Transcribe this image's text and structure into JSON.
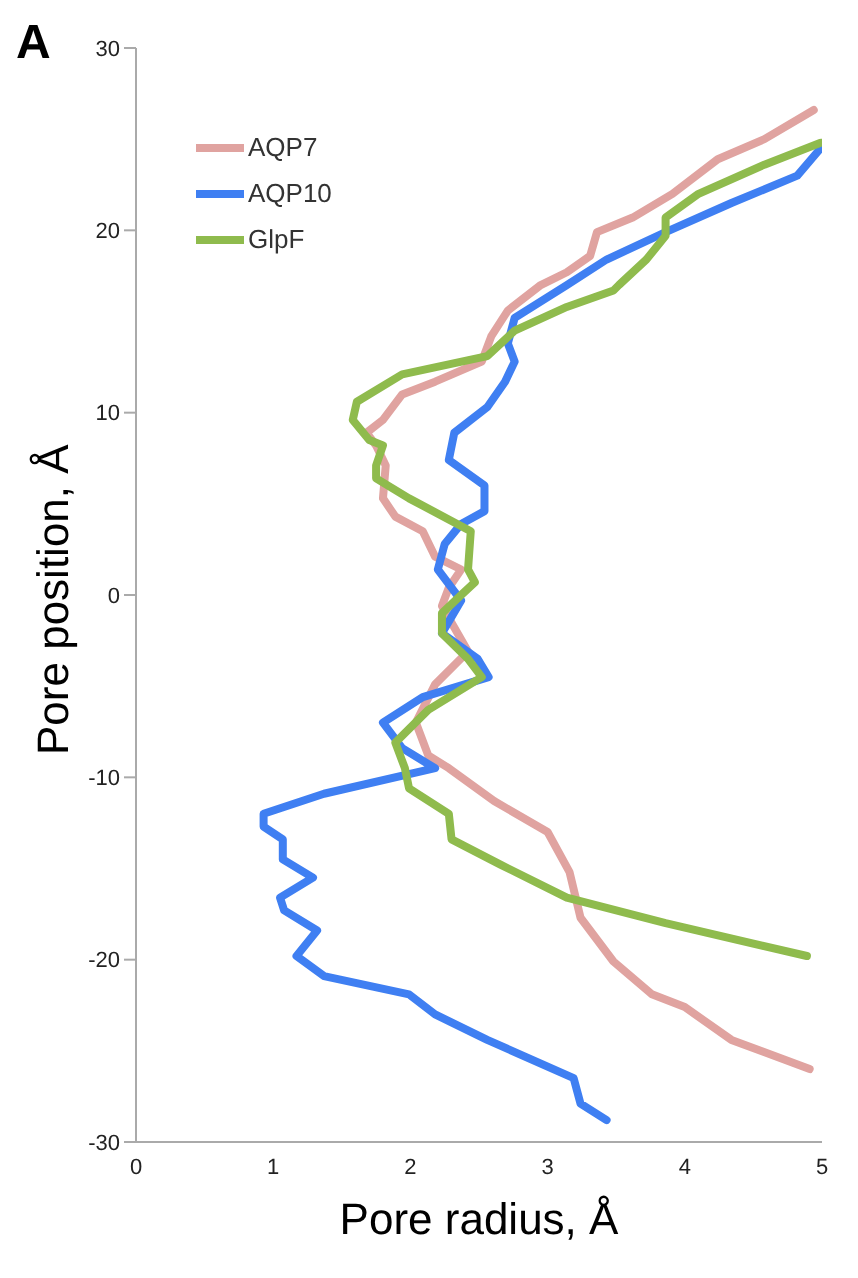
{
  "chart_data": {
    "type": "line",
    "title": "A",
    "xlabel": "Pore radius, Å",
    "ylabel": "Pore position, Å",
    "xlim": [
      0,
      5
    ],
    "xticks": [
      0,
      1,
      2,
      3,
      4,
      5
    ],
    "ylim": [
      -30,
      30
    ],
    "yticks": [
      -30,
      -20,
      -10,
      0,
      10,
      20,
      30
    ],
    "grid": false,
    "legend": "top left",
    "marker": "none",
    "line_style": "solid",
    "series": [
      {
        "name": "AQP7",
        "color": "#e0a3a0",
        "x": [
          4.94,
          4.58,
          4.24,
          3.91,
          3.62,
          3.36,
          3.31,
          3.14,
          2.95,
          2.71,
          2.59,
          2.52,
          2.18,
          1.94,
          1.8,
          1.68,
          1.75,
          1.82,
          1.8,
          1.89,
          2.09,
          2.18,
          2.37,
          2.28,
          2.23,
          2.42,
          2.18,
          2.04,
          2.13,
          2.28,
          2.61,
          3.0,
          3.16,
          3.24,
          3.48,
          3.76,
          4.0,
          4.34,
          4.91
        ],
        "values": [
          26.6,
          25.0,
          23.9,
          22.0,
          20.7,
          19.9,
          18.6,
          17.7,
          17.0,
          15.6,
          14.2,
          12.8,
          11.7,
          11.0,
          9.6,
          8.9,
          8.2,
          7.1,
          5.3,
          4.3,
          3.5,
          2.1,
          1.4,
          0.4,
          -0.6,
          -3.1,
          -4.9,
          -7.0,
          -8.8,
          -9.5,
          -11.3,
          -13.0,
          -15.2,
          -17.7,
          -20.1,
          -21.9,
          -22.6,
          -24.4,
          -26.0
        ]
      },
      {
        "name": "AQP10",
        "color": "#3f7ff2",
        "x": [
          4.99,
          4.82,
          4.34,
          3.86,
          3.43,
          3.14,
          2.76,
          2.71,
          2.76,
          2.69,
          2.56,
          2.32,
          2.28,
          2.54,
          2.54,
          2.37,
          2.25,
          2.2,
          2.32,
          2.37,
          2.23,
          2.49,
          2.57,
          2.09,
          1.8,
          1.94,
          2.18,
          1.37,
          0.93,
          0.93,
          1.07,
          1.07,
          1.29,
          1.05,
          1.08,
          1.32,
          1.17,
          1.37,
          1.99,
          2.18,
          2.56,
          3.19,
          3.24,
          3.43
        ],
        "values": [
          24.5,
          23.0,
          21.5,
          19.9,
          18.4,
          17.0,
          15.2,
          13.8,
          12.8,
          11.7,
          10.3,
          8.9,
          7.4,
          6.0,
          4.6,
          3.9,
          2.8,
          1.4,
          0.2,
          -0.3,
          -2.1,
          -3.5,
          -4.5,
          -5.6,
          -7.0,
          -8.4,
          -9.5,
          -10.9,
          -12.0,
          -12.7,
          -13.4,
          -14.5,
          -15.5,
          -16.6,
          -17.3,
          -18.4,
          -19.8,
          -20.9,
          -21.9,
          -23.0,
          -24.4,
          -26.5,
          -27.9,
          -28.8
        ]
      },
      {
        "name": "GlpF",
        "color": "#8fbb4d",
        "x": [
          4.99,
          4.58,
          4.1,
          3.86,
          3.86,
          3.72,
          3.52,
          3.48,
          3.14,
          2.76,
          2.56,
          1.94,
          1.61,
          1.58,
          1.7,
          1.8,
          1.75,
          1.75,
          1.99,
          2.44,
          2.42,
          2.47,
          2.37,
          2.23,
          2.23,
          2.42,
          2.52,
          2.13,
          1.89,
          1.96,
          1.99,
          2.28,
          2.3,
          2.66,
          3.14,
          3.86,
          4.89
        ],
        "values": [
          24.8,
          23.6,
          22.0,
          20.7,
          19.7,
          18.4,
          17.0,
          16.7,
          15.8,
          14.5,
          13.1,
          12.1,
          10.6,
          9.6,
          8.5,
          8.2,
          7.1,
          6.4,
          5.3,
          3.5,
          1.4,
          0.7,
          0.0,
          -1.0,
          -2.1,
          -3.5,
          -4.5,
          -6.3,
          -8.1,
          -9.5,
          -10.6,
          -12.0,
          -13.4,
          -14.8,
          -16.6,
          -18.0,
          -19.8
        ]
      }
    ]
  }
}
